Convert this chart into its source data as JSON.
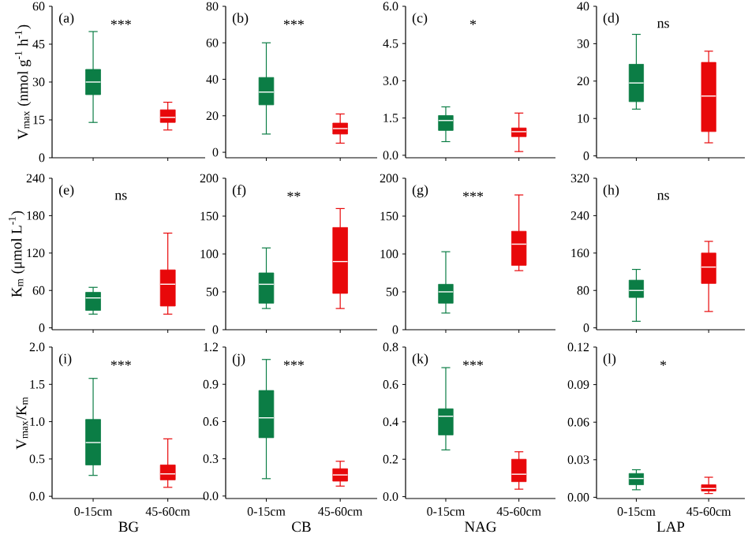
{
  "chart_data": [
    {
      "type": "box",
      "categories": [
        null,
        null
      ],
      "ylabel": "V$_{max}$ (nmol g$^{-1}$ h$^{-1}$)",
      "ylim": [
        0,
        60
      ],
      "yticks": [
        0,
        15,
        30,
        45,
        60
      ],
      "tick_labels": "y",
      "colors": [
        "#0b7d45",
        "#e8080a"
      ],
      "annotations": [
        "(a)",
        "***"
      ],
      "boxes": [
        {
          "low": 14,
          "q1": 25,
          "median": 30,
          "q3": 35,
          "high": 50
        },
        {
          "low": 11,
          "q1": 14,
          "median": 16,
          "q3": 19,
          "high": 22
        }
      ]
    },
    {
      "type": "box",
      "categories": [
        null,
        null
      ],
      "ylim": [
        -3,
        80
      ],
      "yticks": [
        0,
        20,
        40,
        60,
        80
      ],
      "tick_labels": "y",
      "colors": [
        "#0b7d45",
        "#e8080a"
      ],
      "annotations": [
        "(b)",
        "***"
      ],
      "boxes": [
        {
          "low": 10,
          "q1": 26,
          "median": 33,
          "q3": 41,
          "high": 60
        },
        {
          "low": 5,
          "q1": 10,
          "median": 13,
          "q3": 16,
          "high": 21
        }
      ]
    },
    {
      "type": "box",
      "categories": [
        null,
        null
      ],
      "ylim": [
        -0.1,
        6
      ],
      "yticks": [
        {
          "value": 0,
          "label": "0.0"
        },
        1.5,
        {
          "value": 3,
          "label": "3.0"
        },
        4.5,
        {
          "value": 6,
          "label": "6.0"
        }
      ],
      "tick_labels": "y",
      "colors": [
        "#0b7d45",
        "#e8080a"
      ],
      "annotations": [
        "(c)",
        "*"
      ],
      "boxes": [
        {
          "low": 0.55,
          "q1": 1.0,
          "median": 1.4,
          "q3": 1.6,
          "high": 1.95
        },
        {
          "low": 0.15,
          "q1": 0.75,
          "median": 0.95,
          "q3": 1.1,
          "high": 1.7
        }
      ]
    },
    {
      "type": "box",
      "categories": [
        null,
        null
      ],
      "ylim": [
        -0.5,
        40
      ],
      "yticks": [
        0,
        10,
        20,
        30,
        40
      ],
      "tick_labels": "y",
      "colors": [
        "#0b7d45",
        "#e8080a"
      ],
      "annotations": [
        "(d)",
        "ns"
      ],
      "boxes": [
        {
          "low": 12.5,
          "q1": 14.5,
          "median": 19.5,
          "q3": 24.5,
          "high": 32.5
        },
        {
          "low": 3.5,
          "q1": 6.5,
          "median": 16,
          "q3": 25,
          "high": 28
        }
      ]
    },
    {
      "type": "box",
      "categories": [
        null,
        null
      ],
      "ylabel": "K$_{m}$ (μmol L$^{-1}$)",
      "ylim": [
        -3,
        240
      ],
      "yticks": [
        0,
        60,
        120,
        180,
        240
      ],
      "tick_labels": "y",
      "colors": [
        "#0b7d45",
        "#e8080a"
      ],
      "annotations": [
        "(e)",
        "ns"
      ],
      "boxes": [
        {
          "low": 22,
          "q1": 28,
          "median": 48,
          "q3": 57,
          "high": 65
        },
        {
          "low": 22,
          "q1": 35,
          "median": 70,
          "q3": 93,
          "high": 152
        }
      ]
    },
    {
      "type": "box",
      "categories": [
        null,
        null
      ],
      "ylim": [
        0,
        200
      ],
      "yticks": [
        0,
        50,
        100,
        150,
        200
      ],
      "tick_labels": "y",
      "colors": [
        "#0b7d45",
        "#e8080a"
      ],
      "annotations": [
        "(f)",
        "**"
      ],
      "boxes": [
        {
          "low": 28,
          "q1": 35,
          "median": 60,
          "q3": 75,
          "high": 108
        },
        {
          "low": 28,
          "q1": 48,
          "median": 90,
          "q3": 135,
          "high": 160
        }
      ]
    },
    {
      "type": "box",
      "categories": [
        null,
        null
      ],
      "ylim": [
        0,
        200
      ],
      "yticks": [
        0,
        50,
        100,
        150,
        200
      ],
      "tick_labels": "y",
      "colors": [
        "#0b7d45",
        "#e8080a"
      ],
      "annotations": [
        "(g)",
        "***"
      ],
      "boxes": [
        {
          "low": 22,
          "q1": 35,
          "median": 50,
          "q3": 60,
          "high": 103
        },
        {
          "low": 78,
          "q1": 85,
          "median": 113,
          "q3": 130,
          "high": 178
        }
      ]
    },
    {
      "type": "box",
      "categories": [
        null,
        null
      ],
      "ylim": [
        -4,
        320
      ],
      "yticks": [
        0,
        80,
        160,
        240,
        320
      ],
      "tick_labels": "y",
      "colors": [
        "#0b7d45",
        "#e8080a"
      ],
      "annotations": [
        "(h)",
        "ns"
      ],
      "boxes": [
        {
          "low": 14,
          "q1": 65,
          "median": 80,
          "q3": 102,
          "high": 125
        },
        {
          "low": 35,
          "q1": 95,
          "median": 130,
          "q3": 160,
          "high": 185
        }
      ]
    },
    {
      "type": "box",
      "categories": [
        "0-15cm",
        "45-60cm"
      ],
      "xlabel": "BG",
      "ylabel": "V$_{max}$/K$_{m}$",
      "ylim": [
        -0.03,
        2
      ],
      "yticks": [
        {
          "value": 0,
          "label": "0.0"
        },
        0.5,
        {
          "value": 1,
          "label": "1.0"
        },
        1.5,
        {
          "value": 2,
          "label": "2.0"
        }
      ],
      "colors": [
        "#0b7d45",
        "#e8080a"
      ],
      "annotations": [
        "(i)",
        "***"
      ],
      "boxes": [
        {
          "low": 0.28,
          "q1": 0.42,
          "median": 0.72,
          "q3": 1.03,
          "high": 1.58
        },
        {
          "low": 0.12,
          "q1": 0.22,
          "median": 0.3,
          "q3": 0.42,
          "high": 0.77
        }
      ]
    },
    {
      "type": "box",
      "categories": [
        "0-15cm",
        "45-60cm"
      ],
      "xlabel": "CB",
      "ylim": [
        -0.02,
        1.2
      ],
      "yticks": [
        {
          "value": 0,
          "label": "0.0"
        },
        0.3,
        0.6,
        0.9,
        1.2
      ],
      "colors": [
        "#0b7d45",
        "#e8080a"
      ],
      "annotations": [
        "(j)",
        "***"
      ],
      "boxes": [
        {
          "low": 0.14,
          "q1": 0.47,
          "median": 0.63,
          "q3": 0.85,
          "high": 1.1
        },
        {
          "low": 0.08,
          "q1": 0.12,
          "median": 0.17,
          "q3": 0.22,
          "high": 0.28
        }
      ]
    },
    {
      "type": "box",
      "categories": [
        "0-15cm",
        "45-60cm"
      ],
      "xlabel": "NAG",
      "ylim": [
        -0.01,
        0.8
      ],
      "yticks": [
        {
          "value": 0,
          "label": "0.0"
        },
        0.2,
        0.4,
        0.6,
        0.8
      ],
      "colors": [
        "#0b7d45",
        "#e8080a"
      ],
      "annotations": [
        "(k)",
        "***"
      ],
      "boxes": [
        {
          "low": 0.25,
          "q1": 0.33,
          "median": 0.43,
          "q3": 0.47,
          "high": 0.69
        },
        {
          "low": 0.04,
          "q1": 0.08,
          "median": 0.12,
          "q3": 0.2,
          "high": 0.24
        }
      ]
    },
    {
      "type": "box",
      "categories": [
        "0-15cm",
        "45-60cm"
      ],
      "xlabel": "LAP",
      "ylim": [
        -0.001,
        0.12
      ],
      "yticks": [
        {
          "value": 0,
          "label": "0.00"
        },
        0.03,
        0.06,
        0.09,
        0.12
      ],
      "colors": [
        "#0b7d45",
        "#e8080a"
      ],
      "annotations": [
        "(l)",
        "*"
      ],
      "boxes": [
        {
          "low": 0.006,
          "q1": 0.01,
          "median": 0.015,
          "q3": 0.019,
          "high": 0.022
        },
        {
          "low": 0.003,
          "q1": 0.005,
          "median": 0.007,
          "q3": 0.01,
          "high": 0.016
        }
      ]
    }
  ]
}
